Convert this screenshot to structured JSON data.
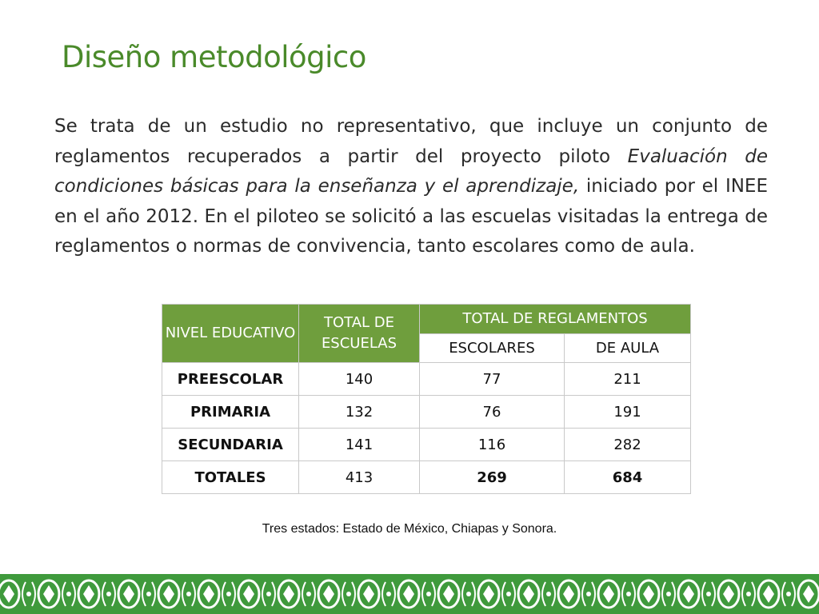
{
  "slide": {
    "title": "Diseño metodológico",
    "paragraph": {
      "part1": "Se trata de un estudio no representativo, que incluye un conjunto de reglamentos recuperados a partir del proyecto piloto ",
      "italic": "Evaluación de condiciones básicas para la enseñanza y el aprendizaje,",
      "part2": " iniciado por el INEE en el año 2012. En el piloteo se solicitó a las escuelas visitadas la entrega de reglamentos o normas de convivencia, tanto escolares como de aula."
    },
    "note": "Tres estados: Estado de México, Chiapas y Sonora."
  },
  "table": {
    "headers": {
      "nivel": "NIVEL EDUCATIVO",
      "total_escuelas": "TOTAL DE ESCUELAS",
      "total_reglamentos": "TOTAL DE REGLAMENTOS",
      "escolares": "ESCOLARES",
      "de_aula": "DE AULA"
    },
    "rows": [
      {
        "nivel": "PREESCOLAR",
        "escuelas": "140",
        "escolares": "77",
        "de_aula": "211"
      },
      {
        "nivel": "PRIMARIA",
        "escuelas": "132",
        "escolares": "76",
        "de_aula": "191"
      },
      {
        "nivel": "SECUNDARIA",
        "escuelas": "141",
        "escolares": "116",
        "de_aula": "282"
      },
      {
        "nivel": "TOTALES",
        "escuelas": "413",
        "escolares": "269",
        "de_aula": "684"
      }
    ]
  },
  "theme": {
    "title_color": "#4a8a2a",
    "header_green": "#6f9e3d",
    "footer_green": "#3f9a3c"
  }
}
